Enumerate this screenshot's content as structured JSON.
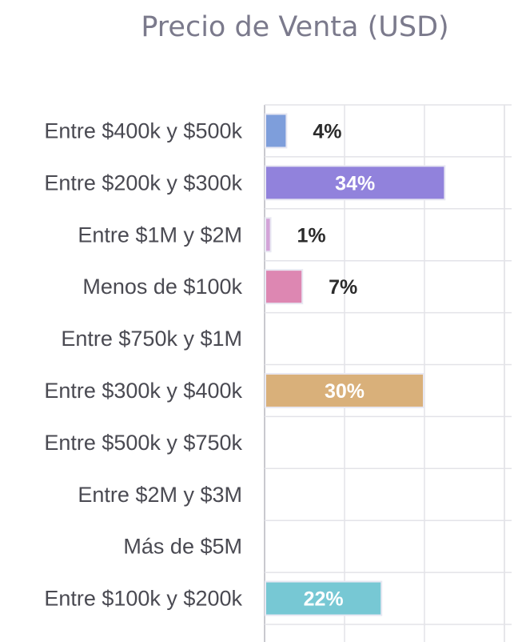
{
  "chart_data": {
    "type": "bar",
    "orientation": "horizontal",
    "title": "Precio de Venta (USD)",
    "xlabel": "",
    "ylabel": "",
    "xlim": [
      0,
      45
    ],
    "grid": true,
    "categories": [
      "Entre $400k y $500k",
      "Entre $200k y $300k",
      "Entre $1M y $2M",
      "Menos de $100k",
      "Entre $750k y $1M",
      "Entre $300k y $400k",
      "Entre $500k y $750k",
      "Entre $2M y $3M",
      "Más de $5M",
      "Entre $100k y $200k"
    ],
    "values": [
      4,
      34,
      1,
      7,
      0,
      30,
      0,
      0,
      0,
      22
    ],
    "value_labels": [
      "4%",
      "34%",
      "1%",
      "7%",
      "",
      "30%",
      "",
      "",
      "",
      "22%"
    ],
    "colors": [
      "#7e9edb",
      "#9182dc",
      "#d3a4d8",
      "#dd87b2",
      "#cccccc",
      "#d9b07a",
      "#cccccc",
      "#cccccc",
      "#cccccc",
      "#77c8d4"
    ]
  }
}
